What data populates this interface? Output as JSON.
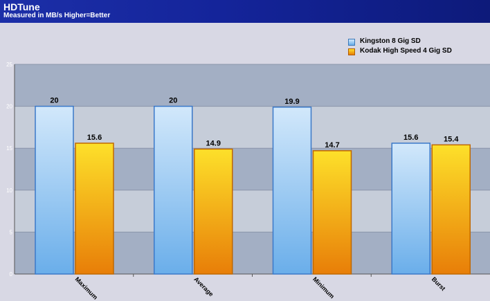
{
  "header": {
    "title": "HDTune",
    "subtitle": "Measured in MB/s Higher=Better"
  },
  "colors": {
    "kingston": "#7ab8ec",
    "kodak": "#f0a020",
    "plot_band_dark": "#a3afc4",
    "plot_band_light": "#c6cdd9"
  },
  "chart_data": {
    "type": "bar",
    "title": "HDTune",
    "subtitle": "Measured in MB/s Higher=Better",
    "categories": [
      "Maximum",
      "Average",
      "Minimum",
      "Burst"
    ],
    "series": [
      {
        "name": "Kingston 8 Gig SD",
        "values": [
          20,
          20,
          19.9,
          15.6
        ]
      },
      {
        "name": "Kodak High Speed 4 Gig SD",
        "values": [
          15.6,
          14.9,
          14.7,
          15.4
        ]
      }
    ],
    "ylim": [
      0,
      25
    ],
    "yticks": [
      0,
      5,
      10,
      15,
      20,
      25
    ],
    "grid": true,
    "legend_position": "top-right"
  }
}
